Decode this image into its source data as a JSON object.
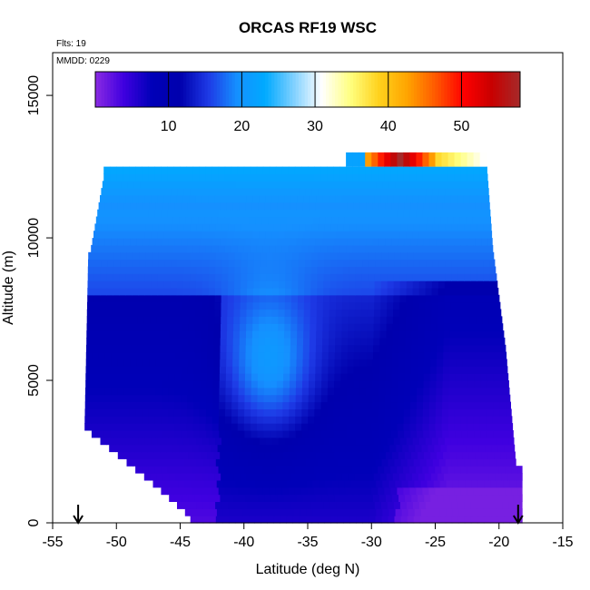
{
  "chart_data": {
    "type": "heatmap",
    "title": "ORCAS RF19 WSC",
    "flights_label": "Flts: 19",
    "date_label": "MMDD: 0229",
    "xlabel": "Latitude (deg N)",
    "ylabel": "Altitude (m)",
    "xlim": [
      -55,
      -15
    ],
    "ylim": [
      0,
      16500
    ],
    "x_ticks": [
      -55,
      -50,
      -45,
      -40,
      -35,
      -30,
      -25,
      -20,
      -15
    ],
    "y_ticks": [
      0,
      5000,
      10000,
      15000
    ],
    "colorbar": {
      "range": [
        0,
        58
      ],
      "ticks": [
        10,
        20,
        30,
        40,
        50
      ],
      "colors": [
        "#8a2be2",
        "#3f00e0",
        "#0000b8",
        "#0000ad",
        "#1e3ae6",
        "#1590ff",
        "#00aaff",
        "#7fd0ff",
        "#ffffff",
        "#ffff80",
        "#ffd21e",
        "#ffa500",
        "#ff5a00",
        "#ff0000",
        "#c80000",
        "#a52a2a"
      ]
    },
    "markers": [
      {
        "latitude": -53,
        "label": "down-arrow"
      },
      {
        "latitude": -18.5,
        "label": "down-arrow"
      }
    ],
    "field": {
      "lat_min": -53,
      "lat_max": -18,
      "alt_min": 0,
      "alt_max": 13000,
      "typical_value_range": [
        2,
        58
      ],
      "high_value_band": {
        "lat": [
          -31,
          -21
        ],
        "alt": [
          12500,
          13000
        ],
        "max": 58
      }
    }
  }
}
